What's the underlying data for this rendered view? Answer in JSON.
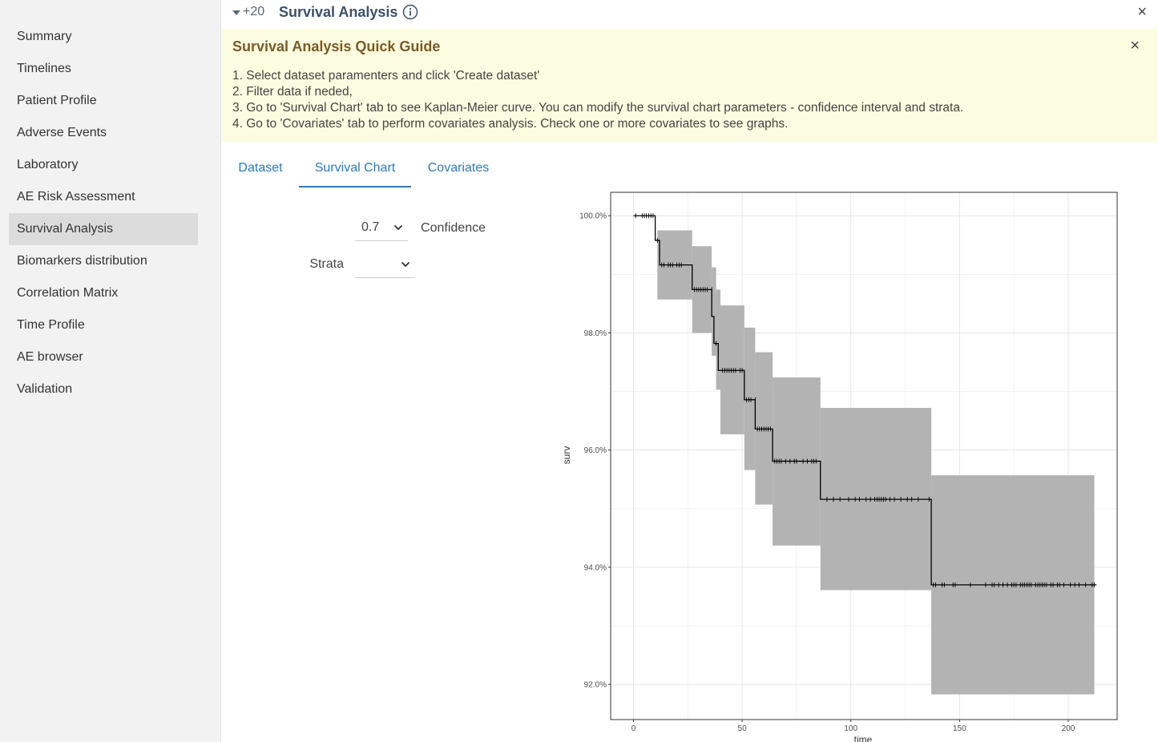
{
  "sidebar": {
    "items": [
      {
        "label": "Summary",
        "active": false
      },
      {
        "label": "Timelines",
        "active": false
      },
      {
        "label": "Patient Profile",
        "active": false
      },
      {
        "label": "Adverse Events",
        "active": false
      },
      {
        "label": "Laboratory",
        "active": false
      },
      {
        "label": "AE Risk Assessment",
        "active": false
      },
      {
        "label": "Survival Analysis",
        "active": true
      },
      {
        "label": "Biomarkers distribution",
        "active": false
      },
      {
        "label": "Correlation Matrix",
        "active": false
      },
      {
        "label": "Time Profile",
        "active": false
      },
      {
        "label": "AE browser",
        "active": false
      },
      {
        "label": "Validation",
        "active": false
      }
    ]
  },
  "header": {
    "collapse_count": "+20",
    "title": "Survival Analysis",
    "close_glyph": "×"
  },
  "guide": {
    "title": "Survival Analysis Quick Guide",
    "close_glyph": "×",
    "steps": [
      "1. Select dataset paramenters and click 'Create dataset'",
      "2. Filter data if neded,",
      "3. Go to 'Survival Chart' tab to see Kaplan-Meier curve. You can modify the survival chart parameters - confidence interval and strata.",
      "4. Go to 'Covariates' tab to perform covariates analysis. Check one or more covariates to see graphs."
    ]
  },
  "tabs": [
    {
      "label": "Dataset",
      "active": false
    },
    {
      "label": "Survival Chart",
      "active": true
    },
    {
      "label": "Covariates",
      "active": false
    }
  ],
  "controls": {
    "confidence": {
      "label": "Confidence",
      "value": "0.7"
    },
    "strata": {
      "label": "Strata",
      "value": ""
    }
  },
  "colors": {
    "accent": "#2f7ab6",
    "band": "#b3b3b3",
    "active_nav": "#dcdcdc",
    "guide_bg": "#fcfde0"
  },
  "chart_data": {
    "type": "line",
    "xlabel": "time",
    "ylabel": "surv",
    "xlim": [
      -10.5,
      222.5
    ],
    "ylim": [
      91.4,
      100.4
    ],
    "xticks": [
      0,
      50,
      100,
      150,
      200
    ],
    "yticks": [
      92,
      94,
      96,
      98,
      100
    ],
    "ytick_labels": [
      "92.0%",
      "94.0%",
      "96.0%",
      "98.0%",
      "100.0%"
    ],
    "grid": true,
    "series": [
      {
        "steps": [
          {
            "x0": 0,
            "x1": 10,
            "y": 100.0
          },
          {
            "x0": 10,
            "x1": 12,
            "y": 99.58
          },
          {
            "x0": 12,
            "x1": 27,
            "y": 99.16
          },
          {
            "x0": 27,
            "x1": 36,
            "y": 98.74
          },
          {
            "x0": 36,
            "x1": 37,
            "y": 98.28
          },
          {
            "x0": 37,
            "x1": 39,
            "y": 97.82
          },
          {
            "x0": 39,
            "x1": 51,
            "y": 97.36
          },
          {
            "x0": 51,
            "x1": 56,
            "y": 96.86
          },
          {
            "x0": 56,
            "x1": 64,
            "y": 96.36
          },
          {
            "x0": 64,
            "x1": 86,
            "y": 95.81
          },
          {
            "x0": 86,
            "x1": 137,
            "y": 95.16
          },
          {
            "x0": 137,
            "x1": 213,
            "y": 93.7
          }
        ],
        "ci_band": [
          {
            "x0": 11,
            "x1": 27,
            "lower": 98.57,
            "upper": 99.75
          },
          {
            "x0": 27,
            "x1": 36,
            "lower": 98.0,
            "upper": 99.48
          },
          {
            "x0": 36,
            "x1": 38,
            "lower": 97.61,
            "upper": 99.12
          },
          {
            "x0": 38,
            "x1": 40,
            "lower": 97.03,
            "upper": 98.74
          },
          {
            "x0": 40,
            "x1": 51,
            "lower": 96.27,
            "upper": 98.47
          },
          {
            "x0": 51,
            "x1": 56,
            "lower": 95.66,
            "upper": 98.09
          },
          {
            "x0": 56,
            "x1": 64,
            "lower": 95.07,
            "upper": 97.67
          },
          {
            "x0": 64,
            "x1": 86,
            "lower": 94.37,
            "upper": 97.24
          },
          {
            "x0": 86,
            "x1": 137,
            "lower": 93.61,
            "upper": 96.72
          },
          {
            "x0": 137,
            "x1": 212,
            "lower": 91.83,
            "upper": 95.57
          }
        ],
        "censored_times": [
          1,
          4,
          5,
          6,
          7,
          8,
          9,
          11,
          13,
          14,
          16,
          17,
          18,
          20,
          21,
          22,
          28,
          29,
          30,
          31,
          32,
          33,
          34,
          36,
          38,
          41,
          42,
          43,
          44,
          45,
          46,
          47,
          49,
          50,
          52,
          53,
          54,
          56,
          57,
          58,
          59,
          60,
          61,
          62,
          63,
          65,
          66,
          67,
          68,
          70,
          72,
          74,
          75,
          78,
          80,
          82,
          83,
          84,
          89,
          92,
          95,
          99,
          102,
          104,
          107,
          109,
          111,
          112,
          113,
          114,
          115,
          116,
          118,
          120,
          123,
          126,
          128,
          131,
          136,
          138,
          139,
          142,
          143,
          147,
          148,
          155,
          162,
          165,
          166,
          168,
          170,
          172,
          174,
          175,
          176,
          178,
          179,
          180,
          181,
          182,
          183,
          185,
          186,
          187,
          188,
          189,
          190,
          192,
          193,
          195,
          196,
          198,
          201,
          203,
          205,
          208,
          211,
          212
        ]
      }
    ]
  }
}
